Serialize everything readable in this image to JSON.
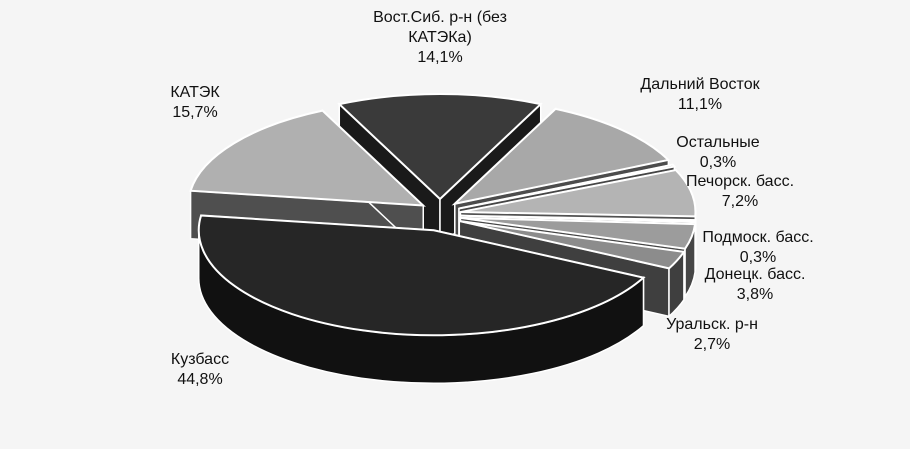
{
  "chart_data": {
    "type": "pie3d",
    "categories": [
      "Вост.Сиб. р-н (без КАТЭКа)",
      "Дальний Восток",
      "Остальные",
      "Печорск. басс.",
      "Подмоск. басс.",
      "Донецк. басс.",
      "Уральск. р-н",
      "Кузбасс",
      "КАТЭК"
    ],
    "values": [
      14.1,
      11.1,
      0.3,
      7.2,
      0.3,
      3.8,
      2.7,
      44.8,
      15.7
    ],
    "value_labels": [
      "14,1%",
      "11,1%",
      "0,3%",
      "7,2%",
      "0,3%",
      "3,8%",
      "2,7%",
      "44,8%",
      "15,7%"
    ],
    "colors": [
      "#3a3a3a",
      "#a8a8a8",
      "#9a9a9a",
      "#b4b4b4",
      "#a0a0a0",
      "#9c9c9c",
      "#8c8c8c",
      "#262626",
      "#b0b0b0"
    ]
  }
}
